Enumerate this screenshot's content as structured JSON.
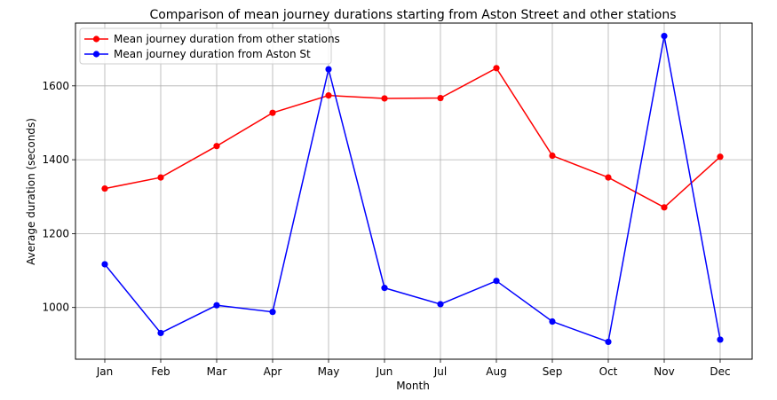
{
  "chart_data": {
    "type": "line",
    "title": "Comparison of mean journey durations starting from Aston Street and other stations",
    "xlabel": "Month",
    "ylabel": "Average duration (seconds)",
    "categories": [
      "Jan",
      "Feb",
      "Mar",
      "Apr",
      "May",
      "Jun",
      "Jul",
      "Aug",
      "Sep",
      "Oct",
      "Nov",
      "Dec"
    ],
    "ylim": [
      860,
      1770
    ],
    "yticks": [
      1000,
      1200,
      1400,
      1600
    ],
    "grid": true,
    "legend_position": "top-left",
    "series": [
      {
        "name": "Mean journey duration from other stations",
        "color": "#ff0000",
        "values": [
          1322,
          1352,
          1437,
          1527,
          1574,
          1566,
          1567,
          1648,
          1411,
          1352,
          1271,
          1408
        ]
      },
      {
        "name": "Mean journey duration from Aston St",
        "color": "#0000ff",
        "values": [
          1117,
          931,
          1006,
          988,
          1645,
          1053,
          1009,
          1072,
          962,
          907,
          1735,
          913
        ]
      }
    ]
  }
}
